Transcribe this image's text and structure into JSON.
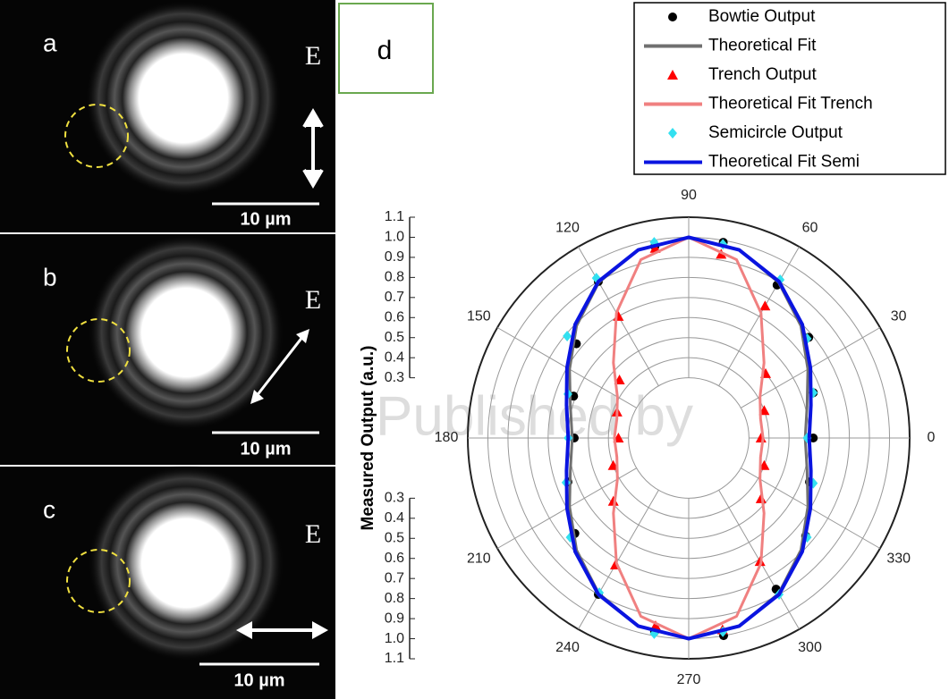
{
  "panels": [
    {
      "label": "a",
      "e": "E",
      "scale": "10 µm"
    },
    {
      "label": "b",
      "e": "E",
      "scale": "10 µm"
    },
    {
      "label": "c",
      "e": "E",
      "scale": "10 µm"
    }
  ],
  "panel_d_label": "d",
  "watermark": "Published by",
  "chart_data": {
    "type": "polar",
    "y_label": "Measured Output (a.u.)",
    "xlim": [
      0,
      360
    ],
    "xticks": [
      0,
      30,
      60,
      90,
      120,
      150,
      180,
      210,
      240,
      270,
      300,
      330
    ],
    "ylim": [
      0,
      1.1
    ],
    "yticks": [
      0.3,
      0.4,
      0.5,
      0.6,
      0.7,
      0.8,
      0.9,
      {
        "value": 1,
        "label": "1.0"
      },
      1.1
    ],
    "grid": true,
    "legend": "top-right",
    "series": [
      {
        "name": "Bowtie Output",
        "color": "#000000",
        "marker": "circle",
        "x": [
          0,
          20,
          40,
          60,
          80,
          100,
          120,
          140,
          160,
          180,
          200,
          220,
          240,
          260,
          280,
          300,
          320,
          340
        ],
        "values": [
          0.62,
          0.66,
          0.78,
          0.88,
          0.99,
          0.97,
          0.9,
          0.73,
          0.61,
          0.57,
          0.64,
          0.74,
          0.9,
          0.98,
          1.0,
          0.87,
          0.76,
          0.64
        ]
      },
      {
        "name": "Theoretical Fit",
        "color": "#707070",
        "marker": "line",
        "x": [
          0,
          15,
          30,
          45,
          60,
          75,
          90,
          105,
          120,
          135,
          150,
          165,
          180,
          195,
          210,
          225,
          240,
          255,
          270,
          285,
          300,
          315,
          330,
          345,
          360
        ],
        "values": [
          0.58,
          0.61,
          0.685,
          0.79,
          0.895,
          0.97,
          1.0,
          0.97,
          0.895,
          0.79,
          0.685,
          0.61,
          0.58,
          0.61,
          0.685,
          0.79,
          0.895,
          0.97,
          1.0,
          0.97,
          0.895,
          0.79,
          0.685,
          0.61,
          0.58
        ]
      },
      {
        "name": "Trench Output",
        "color": "#ff0000",
        "marker": "triangle",
        "x": [
          0,
          20,
          40,
          60,
          80,
          100,
          120,
          140,
          160,
          180,
          200,
          220,
          240,
          260,
          280,
          300,
          320,
          340
        ],
        "values": [
          0.36,
          0.4,
          0.5,
          0.76,
          0.93,
          0.96,
          0.7,
          0.45,
          0.38,
          0.35,
          0.4,
          0.49,
          0.73,
          0.95,
          0.97,
          0.71,
          0.47,
          0.4
        ]
      },
      {
        "name": "Theoretical Fit Trench",
        "color": "#f08080",
        "marker": "line",
        "x": [
          0,
          15,
          30,
          45,
          60,
          75,
          90,
          105,
          120,
          135,
          150,
          165,
          180,
          195,
          210,
          225,
          240,
          255,
          270,
          285,
          300,
          315,
          330,
          345,
          360
        ],
        "values": [
          0.37,
          0.37,
          0.41,
          0.53,
          0.72,
          0.92,
          1.0,
          0.92,
          0.72,
          0.53,
          0.41,
          0.37,
          0.37,
          0.37,
          0.41,
          0.53,
          0.72,
          0.92,
          1.0,
          0.92,
          0.72,
          0.53,
          0.41,
          0.37,
          0.37
        ]
      },
      {
        "name": "Semicircle Output",
        "color": "#33e0f0",
        "marker": "diamond",
        "x": [
          0,
          20,
          40,
          60,
          80,
          100,
          120,
          140,
          160,
          180,
          200,
          220,
          240,
          260,
          280,
          300,
          320,
          340
        ],
        "values": [
          0.59,
          0.66,
          0.77,
          0.91,
          0.98,
          0.99,
          0.92,
          0.79,
          0.64,
          0.6,
          0.65,
          0.77,
          0.89,
          0.99,
          0.98,
          0.9,
          0.77,
          0.66
        ]
      },
      {
        "name": "Theoretical Fit Semi",
        "color": "#0a14e0",
        "marker": "line",
        "x": [
          0,
          15,
          30,
          45,
          60,
          75,
          90,
          105,
          120,
          135,
          150,
          165,
          180,
          195,
          210,
          225,
          240,
          255,
          270,
          285,
          300,
          315,
          330,
          345,
          360
        ],
        "values": [
          0.6,
          0.63,
          0.7,
          0.8,
          0.9,
          0.97,
          1.0,
          0.97,
          0.9,
          0.8,
          0.7,
          0.63,
          0.6,
          0.63,
          0.7,
          0.8,
          0.9,
          0.97,
          1.0,
          0.97,
          0.9,
          0.8,
          0.7,
          0.63,
          0.6
        ]
      }
    ]
  }
}
